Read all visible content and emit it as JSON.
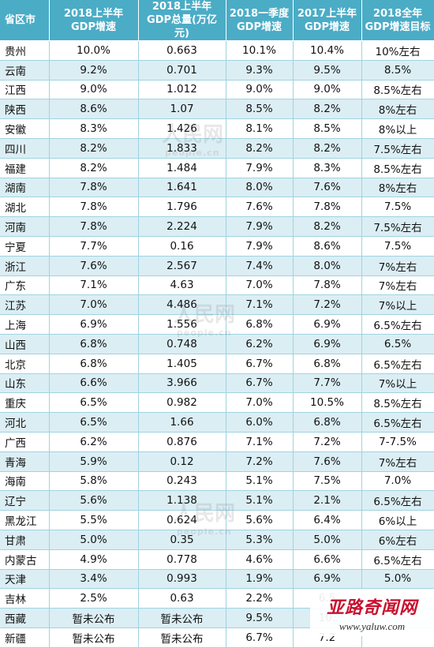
{
  "table": {
    "headers": [
      "省区市",
      "2018上半年\nGDP增速",
      "2018上半年\nGDP总量(万亿元)",
      "2018一季度\nGDP增速",
      "2017上半年\nGDP增速",
      "2018全年\nGDP增速目标"
    ],
    "rows": [
      [
        "贵州",
        "10.0%",
        "0.663",
        "10.1%",
        "10.4%",
        "10%左右"
      ],
      [
        "云南",
        "9.2%",
        "0.701",
        "9.3%",
        "9.5%",
        "8.5%"
      ],
      [
        "江西",
        "9.0%",
        "1.012",
        "9.0%",
        "9.0%",
        "8.5%左右"
      ],
      [
        "陕西",
        "8.6%",
        "1.07",
        "8.5%",
        "8.2%",
        "8%左右"
      ],
      [
        "安徽",
        "8.3%",
        "1.426",
        "8.1%",
        "8.5%",
        "8%以上"
      ],
      [
        "四川",
        "8.2%",
        "1.833",
        "8.2%",
        "8.2%",
        "7.5%左右"
      ],
      [
        "福建",
        "8.2%",
        "1.484",
        "7.9%",
        "8.3%",
        "8.5%左右"
      ],
      [
        "湖南",
        "7.8%",
        "1.641",
        "8.0%",
        "7.6%",
        "8%左右"
      ],
      [
        "湖北",
        "7.8%",
        "1.796",
        "7.6%",
        "7.8%",
        "7.5%"
      ],
      [
        "河南",
        "7.8%",
        "2.224",
        "7.9%",
        "8.2%",
        "7.5%左右"
      ],
      [
        "宁夏",
        "7.7%",
        "0.16",
        "7.9%",
        "8.6%",
        "7.5%"
      ],
      [
        "浙江",
        "7.6%",
        "2.567",
        "7.4%",
        "8.0%",
        "7%左右"
      ],
      [
        "广东",
        "7.1%",
        "4.63",
        "7.0%",
        "7.8%",
        "7%左右"
      ],
      [
        "江苏",
        "7.0%",
        "4.486",
        "7.1%",
        "7.2%",
        "7%以上"
      ],
      [
        "上海",
        "6.9%",
        "1.556",
        "6.8%",
        "6.9%",
        "6.5%左右"
      ],
      [
        "山西",
        "6.8%",
        "0.748",
        "6.2%",
        "6.9%",
        "6.5%"
      ],
      [
        "北京",
        "6.8%",
        "1.405",
        "6.7%",
        "6.8%",
        "6.5%左右"
      ],
      [
        "山东",
        "6.6%",
        "3.966",
        "6.7%",
        "7.7%",
        "7%以上"
      ],
      [
        "重庆",
        "6.5%",
        "0.982",
        "7.0%",
        "10.5%",
        "8.5%左右"
      ],
      [
        "河北",
        "6.5%",
        "1.66",
        "6.0%",
        "6.8%",
        "6.5%左右"
      ],
      [
        "广西",
        "6.2%",
        "0.876",
        "7.1%",
        "7.2%",
        "7-7.5%"
      ],
      [
        "青海",
        "5.9%",
        "0.12",
        "7.2%",
        "7.6%",
        "7%左右"
      ],
      [
        "海南",
        "5.8%",
        "0.243",
        "5.1%",
        "7.5%",
        "7.0%"
      ],
      [
        "辽宁",
        "5.6%",
        "1.138",
        "5.1%",
        "2.1%",
        "6.5%左右"
      ],
      [
        "黑龙江",
        "5.5%",
        "0.624",
        "5.6%",
        "6.4%",
        "6%以上"
      ],
      [
        "甘肃",
        "5.0%",
        "0.35",
        "5.3%",
        "5.0%",
        "6%左右"
      ],
      [
        "内蒙古",
        "4.9%",
        "0.778",
        "4.6%",
        "6.6%",
        "6.5%左右"
      ],
      [
        "天津",
        "3.4%",
        "0.993",
        "1.9%",
        "6.9%",
        "5.0%"
      ],
      [
        "吉林",
        "2.5%",
        "0.63",
        "2.2%",
        "6.5",
        ""
      ],
      [
        "西藏",
        "暂未公布",
        "暂未公布",
        "9.5%",
        "10.",
        ""
      ],
      [
        "新疆",
        "暂未公布",
        "暂未公布",
        "6.7%",
        "7.2",
        ""
      ]
    ]
  },
  "watermark": {
    "mark": "人民网",
    "sub": "people.cn"
  },
  "site_logo": {
    "name": "亚路奇闻网",
    "url": "www.yaluw.com",
    "color": "#c8102e"
  },
  "colors": {
    "header_bg": "#4bacc6",
    "stripe": "#dbeef4"
  }
}
